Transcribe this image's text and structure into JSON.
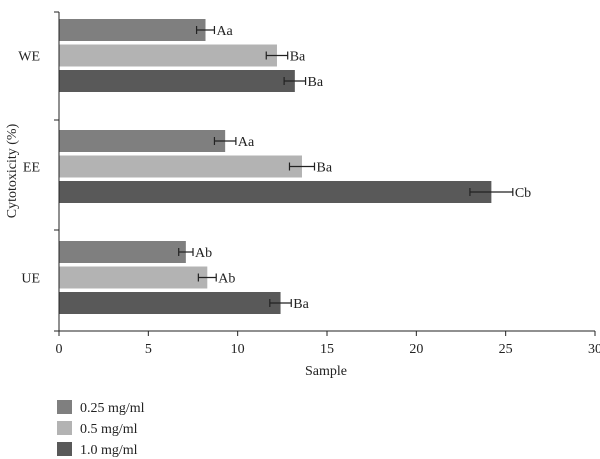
{
  "chart_data": {
    "type": "bar",
    "orientation": "horizontal",
    "categories": [
      "WE",
      "EE",
      "UE"
    ],
    "series": [
      {
        "name": "0.25 mg/ml",
        "color": "#7f7f7f",
        "values": [
          8.2,
          9.3,
          7.1
        ],
        "errors": [
          0.5,
          0.6,
          0.4
        ],
        "labels": [
          "Aa",
          "Aa",
          "Ab"
        ]
      },
      {
        "name": "0.5 mg/ml",
        "color": "#b3b3b3",
        "values": [
          12.2,
          13.6,
          8.3
        ],
        "errors": [
          0.6,
          0.7,
          0.5
        ],
        "labels": [
          "Ba",
          "Ba",
          "Ab"
        ]
      },
      {
        "name": "1.0 mg/ml",
        "color": "#595959",
        "values": [
          13.2,
          24.2,
          12.4
        ],
        "errors": [
          0.6,
          1.2,
          0.6
        ],
        "labels": [
          "Ba",
          "Cb",
          "Ba"
        ]
      }
    ],
    "xlabel": "Sample",
    "ylabel": "Cytotoxicity (%)",
    "xlim": [
      0,
      30
    ],
    "xticks": [
      0,
      5,
      10,
      15,
      20,
      25,
      30
    ],
    "grid": false,
    "legend_position": "bottom-left"
  }
}
